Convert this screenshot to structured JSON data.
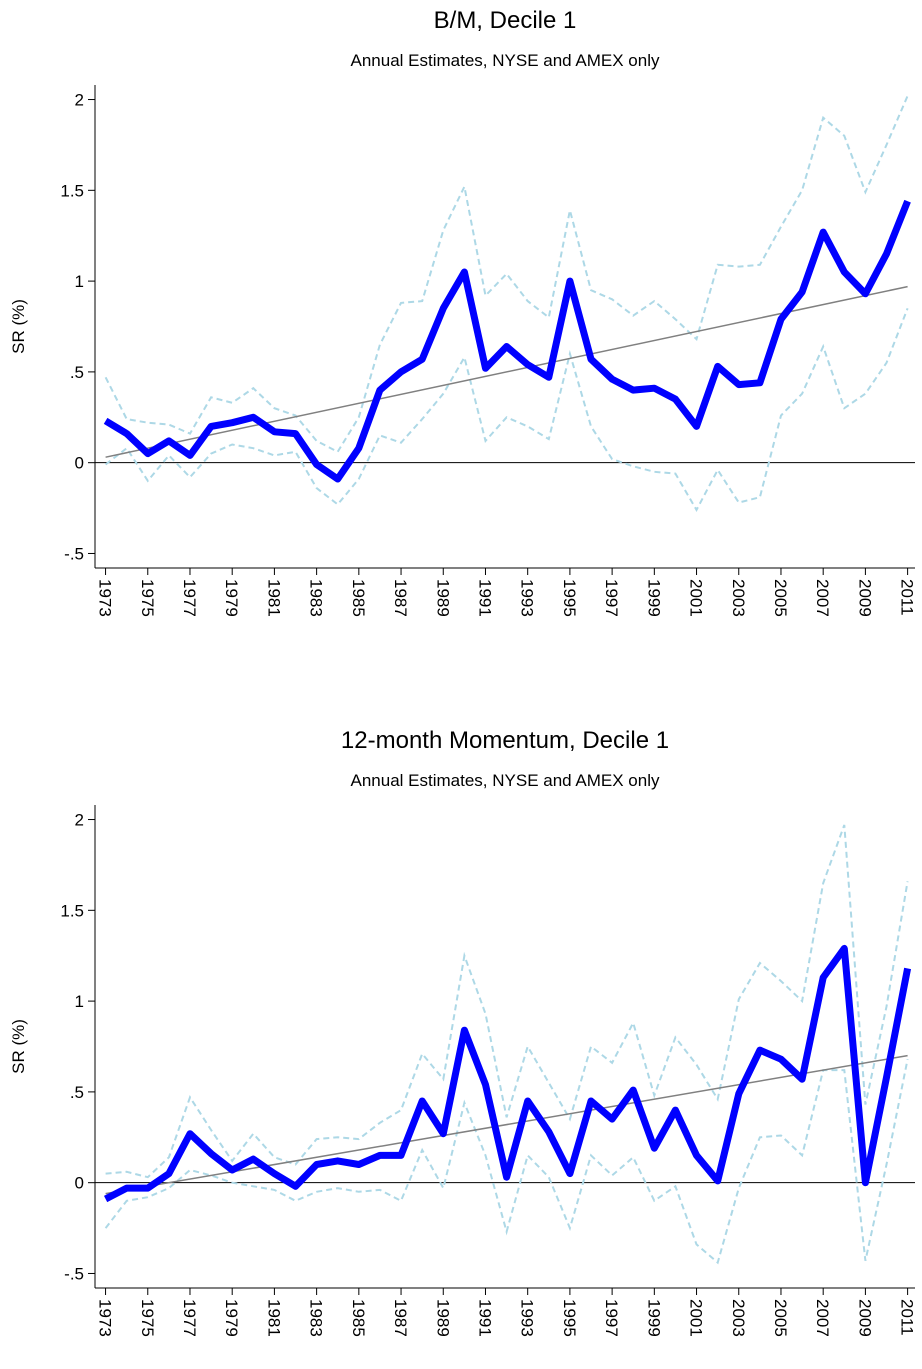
{
  "chart_data": [
    {
      "type": "line",
      "title": "B/M, Decile 1",
      "subtitle": "Annual Estimates, NYSE and AMEX only",
      "y_label": "SR (%)",
      "x": [
        1973,
        1974,
        1975,
        1976,
        1977,
        1978,
        1979,
        1980,
        1981,
        1982,
        1983,
        1984,
        1985,
        1986,
        1987,
        1988,
        1989,
        1990,
        1991,
        1992,
        1993,
        1994,
        1995,
        1996,
        1997,
        1998,
        1999,
        2000,
        2001,
        2002,
        2003,
        2004,
        2005,
        2006,
        2007,
        2008,
        2009,
        2010,
        2011
      ],
      "xlim": [
        1972.5,
        2011.35
      ],
      "xticks": [
        1973,
        1975,
        1977,
        1979,
        1981,
        1983,
        1985,
        1987,
        1989,
        1991,
        1993,
        1995,
        1997,
        1999,
        2001,
        2003,
        2005,
        2007,
        2009,
        2011
      ],
      "ylim": [
        -0.58,
        2.08
      ],
      "yticks": [
        {
          "value": -0.5,
          "label": "-.5"
        },
        0,
        {
          "value": 0.5,
          "label": ".5"
        },
        1,
        1.5,
        2
      ],
      "refline": 0,
      "series": [
        {
          "color": "#add8e6",
          "style": "dashed",
          "values": [
            0.47,
            0.24,
            0.22,
            0.21,
            0.16,
            0.36,
            0.33,
            0.41,
            0.3,
            0.26,
            0.12,
            0.06,
            0.25,
            0.65,
            0.88,
            0.89,
            1.28,
            1.52,
            0.92,
            1.04,
            0.89,
            0.8,
            1.39,
            0.95,
            0.9,
            0.81,
            0.89,
            0.79,
            0.68,
            1.09,
            1.08,
            1.09,
            1.3,
            1.5,
            1.9,
            1.8,
            1.49,
            1.75,
            2.02
          ]
        },
        {
          "color": "#add8e6",
          "style": "dashed",
          "values": [
            -0.01,
            0.08,
            -0.1,
            0.04,
            -0.08,
            0.05,
            0.1,
            0.08,
            0.04,
            0.06,
            -0.14,
            -0.23,
            -0.09,
            0.15,
            0.11,
            0.24,
            0.38,
            0.58,
            0.12,
            0.25,
            0.2,
            0.13,
            0.6,
            0.2,
            0.02,
            -0.02,
            -0.05,
            -0.06,
            -0.26,
            -0.04,
            -0.22,
            -0.19,
            0.26,
            0.38,
            0.64,
            0.3,
            0.38,
            0.55,
            0.85
          ]
        },
        {
          "color": "#808080",
          "style": "thin",
          "x": [
            1973,
            2011
          ],
          "values": [
            0.03,
            0.97
          ]
        },
        {
          "color": "#0000ff",
          "style": "thick",
          "values": [
            0.23,
            0.16,
            0.05,
            0.12,
            0.04,
            0.2,
            0.22,
            0.25,
            0.17,
            0.16,
            -0.01,
            -0.09,
            0.08,
            0.4,
            0.5,
            0.57,
            0.85,
            1.05,
            0.52,
            0.64,
            0.54,
            0.47,
            1.0,
            0.57,
            0.46,
            0.4,
            0.41,
            0.35,
            0.2,
            0.53,
            0.43,
            0.44,
            0.79,
            0.94,
            1.27,
            1.05,
            0.93,
            1.15,
            1.44
          ]
        }
      ]
    },
    {
      "type": "line",
      "title": "12-month Momentum, Decile 1",
      "subtitle": "Annual Estimates, NYSE and AMEX only",
      "y_label": "SR (%)",
      "x": [
        1973,
        1974,
        1975,
        1976,
        1977,
        1978,
        1979,
        1980,
        1981,
        1982,
        1983,
        1984,
        1985,
        1986,
        1987,
        1988,
        1989,
        1990,
        1991,
        1992,
        1993,
        1994,
        1995,
        1996,
        1997,
        1998,
        1999,
        2000,
        2001,
        2002,
        2003,
        2004,
        2005,
        2006,
        2007,
        2008,
        2009,
        2010,
        2011
      ],
      "xlim": [
        1972.5,
        2011.35
      ],
      "xticks": [
        1973,
        1975,
        1977,
        1979,
        1981,
        1983,
        1985,
        1987,
        1989,
        1991,
        1993,
        1995,
        1997,
        1999,
        2001,
        2003,
        2005,
        2007,
        2009,
        2011
      ],
      "ylim": [
        -0.58,
        2.08
      ],
      "yticks": [
        {
          "value": -0.5,
          "label": "-.5"
        },
        0,
        {
          "value": 0.5,
          "label": ".5"
        },
        1,
        1.5,
        2
      ],
      "refline": 0,
      "series": [
        {
          "color": "#add8e6",
          "style": "dashed",
          "values": [
            0.05,
            0.06,
            0.03,
            0.14,
            0.47,
            0.29,
            0.12,
            0.27,
            0.14,
            0.1,
            0.24,
            0.25,
            0.24,
            0.33,
            0.4,
            0.71,
            0.57,
            1.25,
            0.93,
            0.36,
            0.75,
            0.55,
            0.35,
            0.75,
            0.66,
            0.88,
            0.48,
            0.8,
            0.65,
            0.46,
            1.01,
            1.21,
            1.11,
            1.0,
            1.65,
            1.97,
            0.43,
            0.97,
            1.66
          ]
        },
        {
          "color": "#add8e6",
          "style": "dashed",
          "values": [
            -0.25,
            -0.1,
            -0.08,
            -0.03,
            0.07,
            0.04,
            0.0,
            -0.02,
            -0.04,
            -0.1,
            -0.05,
            -0.03,
            -0.05,
            -0.04,
            -0.1,
            0.18,
            -0.03,
            0.44,
            0.15,
            -0.27,
            0.15,
            0.03,
            -0.25,
            0.15,
            0.04,
            0.14,
            -0.1,
            -0.02,
            -0.34,
            -0.44,
            -0.03,
            0.25,
            0.26,
            0.15,
            0.62,
            0.62,
            -0.43,
            0.1,
            0.68
          ]
        },
        {
          "color": "#808080",
          "style": "thin",
          "x": [
            1973,
            2011
          ],
          "values": [
            -0.06,
            0.7
          ]
        },
        {
          "color": "#0000ff",
          "style": "thick",
          "values": [
            -0.09,
            -0.03,
            -0.03,
            0.05,
            0.27,
            0.16,
            0.07,
            0.13,
            0.05,
            -0.02,
            0.1,
            0.12,
            0.1,
            0.15,
            0.15,
            0.45,
            0.27,
            0.84,
            0.54,
            0.03,
            0.45,
            0.28,
            0.05,
            0.45,
            0.35,
            0.51,
            0.19,
            0.4,
            0.15,
            0.01,
            0.49,
            0.73,
            0.68,
            0.57,
            1.13,
            1.29,
            0.0,
            0.58,
            1.18
          ]
        }
      ]
    }
  ]
}
